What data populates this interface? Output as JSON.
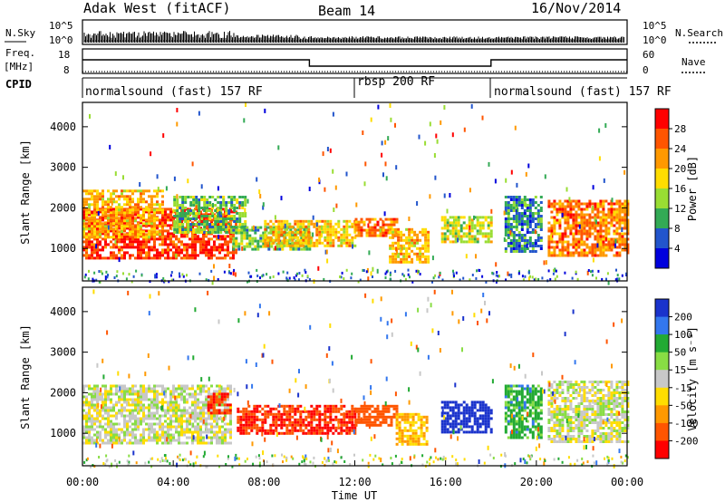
{
  "header": {
    "station": "Adak West (fitACF)",
    "beam": "Beam 14",
    "date": "16/Nov/2014"
  },
  "noise_panel": {
    "left_label": "N.Sky",
    "right_label": "N.Search",
    "ticks": [
      "10^5",
      "10^0"
    ]
  },
  "freq_panel": {
    "left_label_1": "Freq.",
    "left_label_2": "[MHz]",
    "right_label": "Nave",
    "left_ticks": [
      "18",
      "8"
    ],
    "right_ticks": [
      "60",
      "0"
    ]
  },
  "cpid_panel": {
    "label": "CPID",
    "modes": [
      {
        "name": "normalsound (fast) 157 RF",
        "start_hour": 0
      },
      {
        "name": "rbsp 200 RF",
        "start_hour": 12
      },
      {
        "name": "normalsound (fast) 157 RF",
        "start_hour": 18
      }
    ]
  },
  "power_colorbar": {
    "label": "Power [dB]",
    "ticks": [
      "28",
      "24",
      "20",
      "16",
      "12",
      "8",
      "4"
    ],
    "colors": [
      "#ff0000",
      "#ff5500",
      "#ff9900",
      "#ffdd00",
      "#99dd33",
      "#33aa55",
      "#2255cc",
      "#0000dd"
    ]
  },
  "velocity_colorbar": {
    "label": "Velocity [m s⁻¹]",
    "ticks": [
      "200",
      "100",
      "50",
      "15",
      "-15",
      "-50",
      "-100",
      "-200"
    ],
    "colors": [
      "#1a33cc",
      "#3377ee",
      "#22aa33",
      "#88dd44",
      "#c8c8c8",
      "#ffdd00",
      "#ff9900",
      "#ff5500",
      "#ff0000"
    ]
  },
  "chart_data": [
    {
      "type": "heatmap",
      "name": "Power",
      "ylabel": "Slant Range [km]",
      "xlim": [
        0,
        24
      ],
      "ylim": [
        200,
        4600
      ],
      "yticks": [
        1000,
        2000,
        3000,
        4000
      ],
      "regions": [
        {
          "x": [
            0.0,
            6.8
          ],
          "y": [
            750,
            2000
          ],
          "level": 28
        },
        {
          "x": [
            0.0,
            3.5
          ],
          "y": [
            1300,
            2450
          ],
          "level": 20
        },
        {
          "x": [
            4.0,
            7.2
          ],
          "y": [
            1400,
            2300
          ],
          "level": 12
        },
        {
          "x": [
            6.6,
            10.0
          ],
          "y": [
            950,
            1550
          ],
          "level": 12
        },
        {
          "x": [
            8.0,
            12.0
          ],
          "y": [
            1050,
            1700
          ],
          "level": 20
        },
        {
          "x": [
            12.0,
            13.8
          ],
          "y": [
            1300,
            1750
          ],
          "level": 24
        },
        {
          "x": [
            13.5,
            15.2
          ],
          "y": [
            650,
            1500
          ],
          "level": 20
        },
        {
          "x": [
            15.8,
            18.0
          ],
          "y": [
            1150,
            1800
          ],
          "level": 16
        },
        {
          "x": [
            18.6,
            20.2
          ],
          "y": [
            900,
            2300
          ],
          "level": 8
        },
        {
          "x": [
            20.5,
            24.0
          ],
          "y": [
            850,
            2200
          ],
          "level": 24
        }
      ]
    },
    {
      "type": "heatmap",
      "name": "Velocity",
      "ylabel": "Slant Range [km]",
      "xlabel": "Time UT",
      "xlim": [
        0,
        24
      ],
      "ylim": [
        200,
        4600
      ],
      "yticks": [
        1000,
        2000,
        3000,
        4000
      ],
      "xticks": [
        "00:00",
        "04:00",
        "08:00",
        "12:00",
        "16:00",
        "20:00",
        "00:00"
      ],
      "regions": [
        {
          "x": [
            0.0,
            6.5
          ],
          "y": [
            750,
            2200
          ],
          "level": 0
        },
        {
          "x": [
            5.5,
            6.5
          ],
          "y": [
            1500,
            2000
          ],
          "level": -200
        },
        {
          "x": [
            6.8,
            12.0
          ],
          "y": [
            1000,
            1700
          ],
          "level": -200
        },
        {
          "x": [
            12.0,
            13.8
          ],
          "y": [
            1200,
            1700
          ],
          "level": -150
        },
        {
          "x": [
            13.8,
            15.2
          ],
          "y": [
            700,
            1500
          ],
          "level": -50
        },
        {
          "x": [
            15.8,
            18.0
          ],
          "y": [
            1000,
            1800
          ],
          "level": 200
        },
        {
          "x": [
            18.6,
            20.2
          ],
          "y": [
            900,
            2200
          ],
          "level": 50
        },
        {
          "x": [
            20.5,
            24.0
          ],
          "y": [
            800,
            2300
          ],
          "level": 0
        }
      ]
    }
  ]
}
